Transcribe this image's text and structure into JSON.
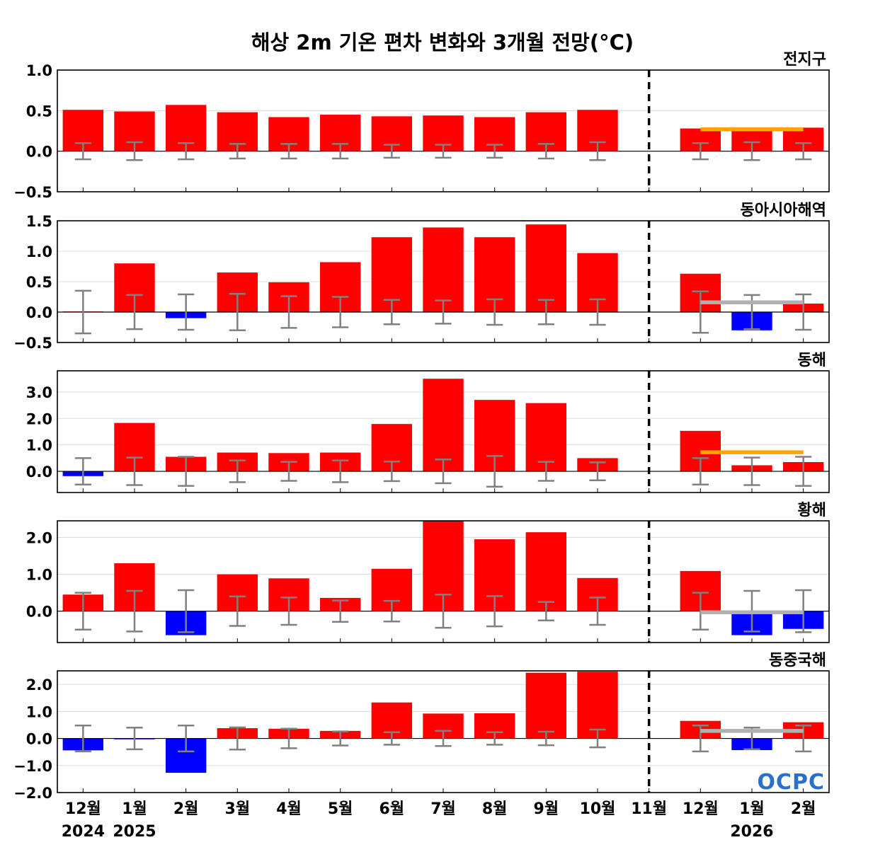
{
  "title": "해상 2m 기온 편차 변화와 3개월 전망(°C)",
  "logo_text": "OCPC",
  "colors": {
    "positive_bar": "#ff0000",
    "negative_bar": "#0000ff",
    "error_bar": "#808080",
    "forecast_above": "#ffa500",
    "forecast_normal": "#b0b0b0",
    "divider": "#000000"
  },
  "chart_data": {
    "type": "bar",
    "categories": [
      "12월",
      "1월",
      "2월",
      "3월",
      "4월",
      "5월",
      "6월",
      "7월",
      "8월",
      "9월",
      "10월",
      "11월",
      "12월",
      "1월",
      "2월"
    ],
    "year_labels": [
      {
        "index": 0,
        "text": "2024"
      },
      {
        "index": 1,
        "text": "2025"
      },
      {
        "index": 13,
        "text": "2026"
      }
    ],
    "divider_after_category": "11월",
    "panels": [
      {
        "title": "전지구",
        "ylim": [
          -0.5,
          1.0
        ],
        "yticks": [
          {
            "v": 1.0,
            "t": "1.0"
          },
          {
            "v": 0.5,
            "t": "0.5"
          },
          {
            "v": 0.0,
            "t": "0.0"
          },
          {
            "v": -0.5,
            "t": "−0.5"
          }
        ],
        "values": [
          0.51,
          0.49,
          0.57,
          0.48,
          0.42,
          0.45,
          0.43,
          0.44,
          0.42,
          0.48,
          0.51,
          0.0,
          0.28,
          0.27,
          0.29
        ],
        "error_range": [
          0.1,
          0.11,
          0.1,
          0.09,
          0.09,
          0.09,
          0.08,
          0.08,
          0.08,
          0.09,
          0.11,
          0.0,
          0.1,
          0.11,
          0.1
        ],
        "forecast_band": {
          "start": 12,
          "end": 14,
          "value": 0.27,
          "category": "above"
        }
      },
      {
        "title": "동아시아해역",
        "ylim": [
          -0.5,
          1.5
        ],
        "yticks": [
          {
            "v": 1.5,
            "t": "1.5"
          },
          {
            "v": 1.0,
            "t": "1.0"
          },
          {
            "v": 0.5,
            "t": "0.5"
          },
          {
            "v": 0.0,
            "t": "0.0"
          },
          {
            "v": -0.5,
            "t": "−0.5"
          }
        ],
        "values": [
          0.01,
          0.8,
          -0.1,
          0.65,
          0.49,
          0.82,
          1.23,
          1.39,
          1.23,
          1.44,
          0.97,
          0.0,
          0.63,
          -0.3,
          0.14
        ],
        "error_range": [
          0.35,
          0.28,
          0.29,
          0.3,
          0.26,
          0.25,
          0.2,
          0.19,
          0.21,
          0.2,
          0.21,
          0.0,
          0.34,
          0.28,
          0.29
        ],
        "forecast_band": {
          "start": 12,
          "end": 14,
          "value": 0.16,
          "category": "normal"
        }
      },
      {
        "title": "동해",
        "ylim": [
          -0.8,
          3.8
        ],
        "yticks": [
          {
            "v": 3.0,
            "t": "3.0"
          },
          {
            "v": 2.0,
            "t": "2.0"
          },
          {
            "v": 1.0,
            "t": "1.0"
          },
          {
            "v": 0.0,
            "t": "0.0"
          }
        ],
        "values": [
          -0.18,
          1.83,
          0.55,
          0.71,
          0.69,
          0.71,
          1.79,
          3.5,
          2.7,
          2.58,
          0.5,
          0.0,
          1.53,
          0.23,
          0.35
        ],
        "error_range": [
          0.5,
          0.52,
          0.55,
          0.41,
          0.36,
          0.41,
          0.37,
          0.45,
          0.58,
          0.36,
          0.34,
          0.0,
          0.5,
          0.52,
          0.55
        ],
        "forecast_band": {
          "start": 12,
          "end": 14,
          "value": 0.72,
          "category": "above"
        }
      },
      {
        "title": "황해",
        "ylim": [
          -0.85,
          2.45
        ],
        "yticks": [
          {
            "v": 2.0,
            "t": "2.0"
          },
          {
            "v": 1.0,
            "t": "1.0"
          },
          {
            "v": 0.0,
            "t": "0.0"
          }
        ],
        "values": [
          0.45,
          1.3,
          -0.65,
          1.0,
          0.89,
          0.36,
          1.15,
          2.44,
          1.95,
          2.14,
          0.9,
          0.0,
          1.09,
          -0.65,
          -0.48
        ],
        "error_range": [
          0.5,
          0.55,
          0.57,
          0.4,
          0.37,
          0.29,
          0.28,
          0.45,
          0.41,
          0.25,
          0.37,
          0.0,
          0.5,
          0.55,
          0.57
        ],
        "forecast_band": {
          "start": 12,
          "end": 14,
          "value": -0.03,
          "category": "normal"
        }
      },
      {
        "title": "동중국해",
        "ylim": [
          -2.0,
          2.5
        ],
        "yticks": [
          {
            "v": 2.0,
            "t": "2.0"
          },
          {
            "v": 1.0,
            "t": "1.0"
          },
          {
            "v": 0.0,
            "t": "0.0"
          },
          {
            "v": -1.0,
            "t": "−1.0"
          },
          {
            "v": -2.0,
            "t": "−2.0"
          }
        ],
        "values": [
          -0.44,
          -0.03,
          -1.27,
          0.38,
          0.36,
          0.28,
          1.33,
          0.92,
          0.93,
          2.43,
          2.47,
          0.0,
          0.65,
          -0.43,
          0.6
        ],
        "error_range": [
          0.48,
          0.4,
          0.48,
          0.41,
          0.36,
          0.26,
          0.23,
          0.28,
          0.23,
          0.25,
          0.33,
          0.0,
          0.48,
          0.4,
          0.48
        ],
        "forecast_band": {
          "start": 12,
          "end": 14,
          "value": 0.28,
          "category": "normal"
        }
      }
    ]
  }
}
